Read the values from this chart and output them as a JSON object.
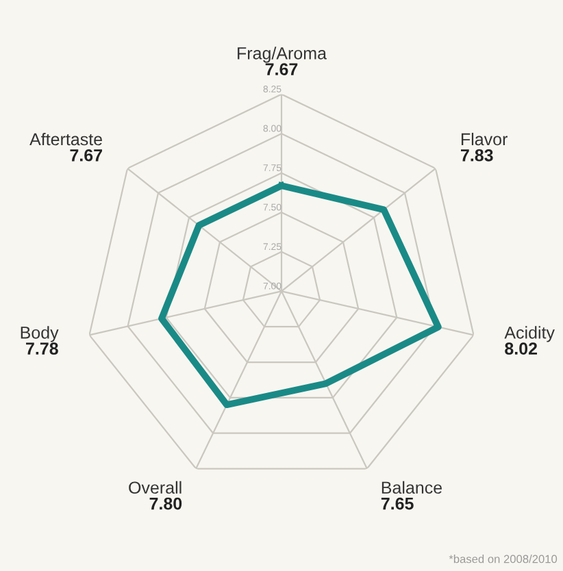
{
  "chart_data": {
    "type": "radar",
    "categories": [
      "Frag/Aroma",
      "Flavor",
      "Acidity",
      "Balance",
      "Overall",
      "Body",
      "Aftertaste"
    ],
    "series": [
      {
        "color": "#1a8a87",
        "values": [
          7.67,
          7.83,
          8.02,
          7.65,
          7.8,
          7.78,
          7.67
        ]
      }
    ],
    "ylim": [
      7.0,
      8.25
    ],
    "yticks": [
      {
        "value": 7.0,
        "label": "7.00"
      },
      {
        "value": 7.25,
        "label": "7.25"
      },
      {
        "value": 7.5,
        "label": "7.50"
      },
      {
        "value": 7.75,
        "label": "7.75"
      },
      {
        "value": 8.0,
        "label": "8.00"
      },
      {
        "value": 8.25,
        "label": "8.25"
      }
    ],
    "grid": true,
    "annotations": [
      "7.67",
      "7.83",
      "8.02",
      "7.65",
      "7.80",
      "7.78",
      "7.67",
      "*based on 2008/2010"
    ]
  }
}
